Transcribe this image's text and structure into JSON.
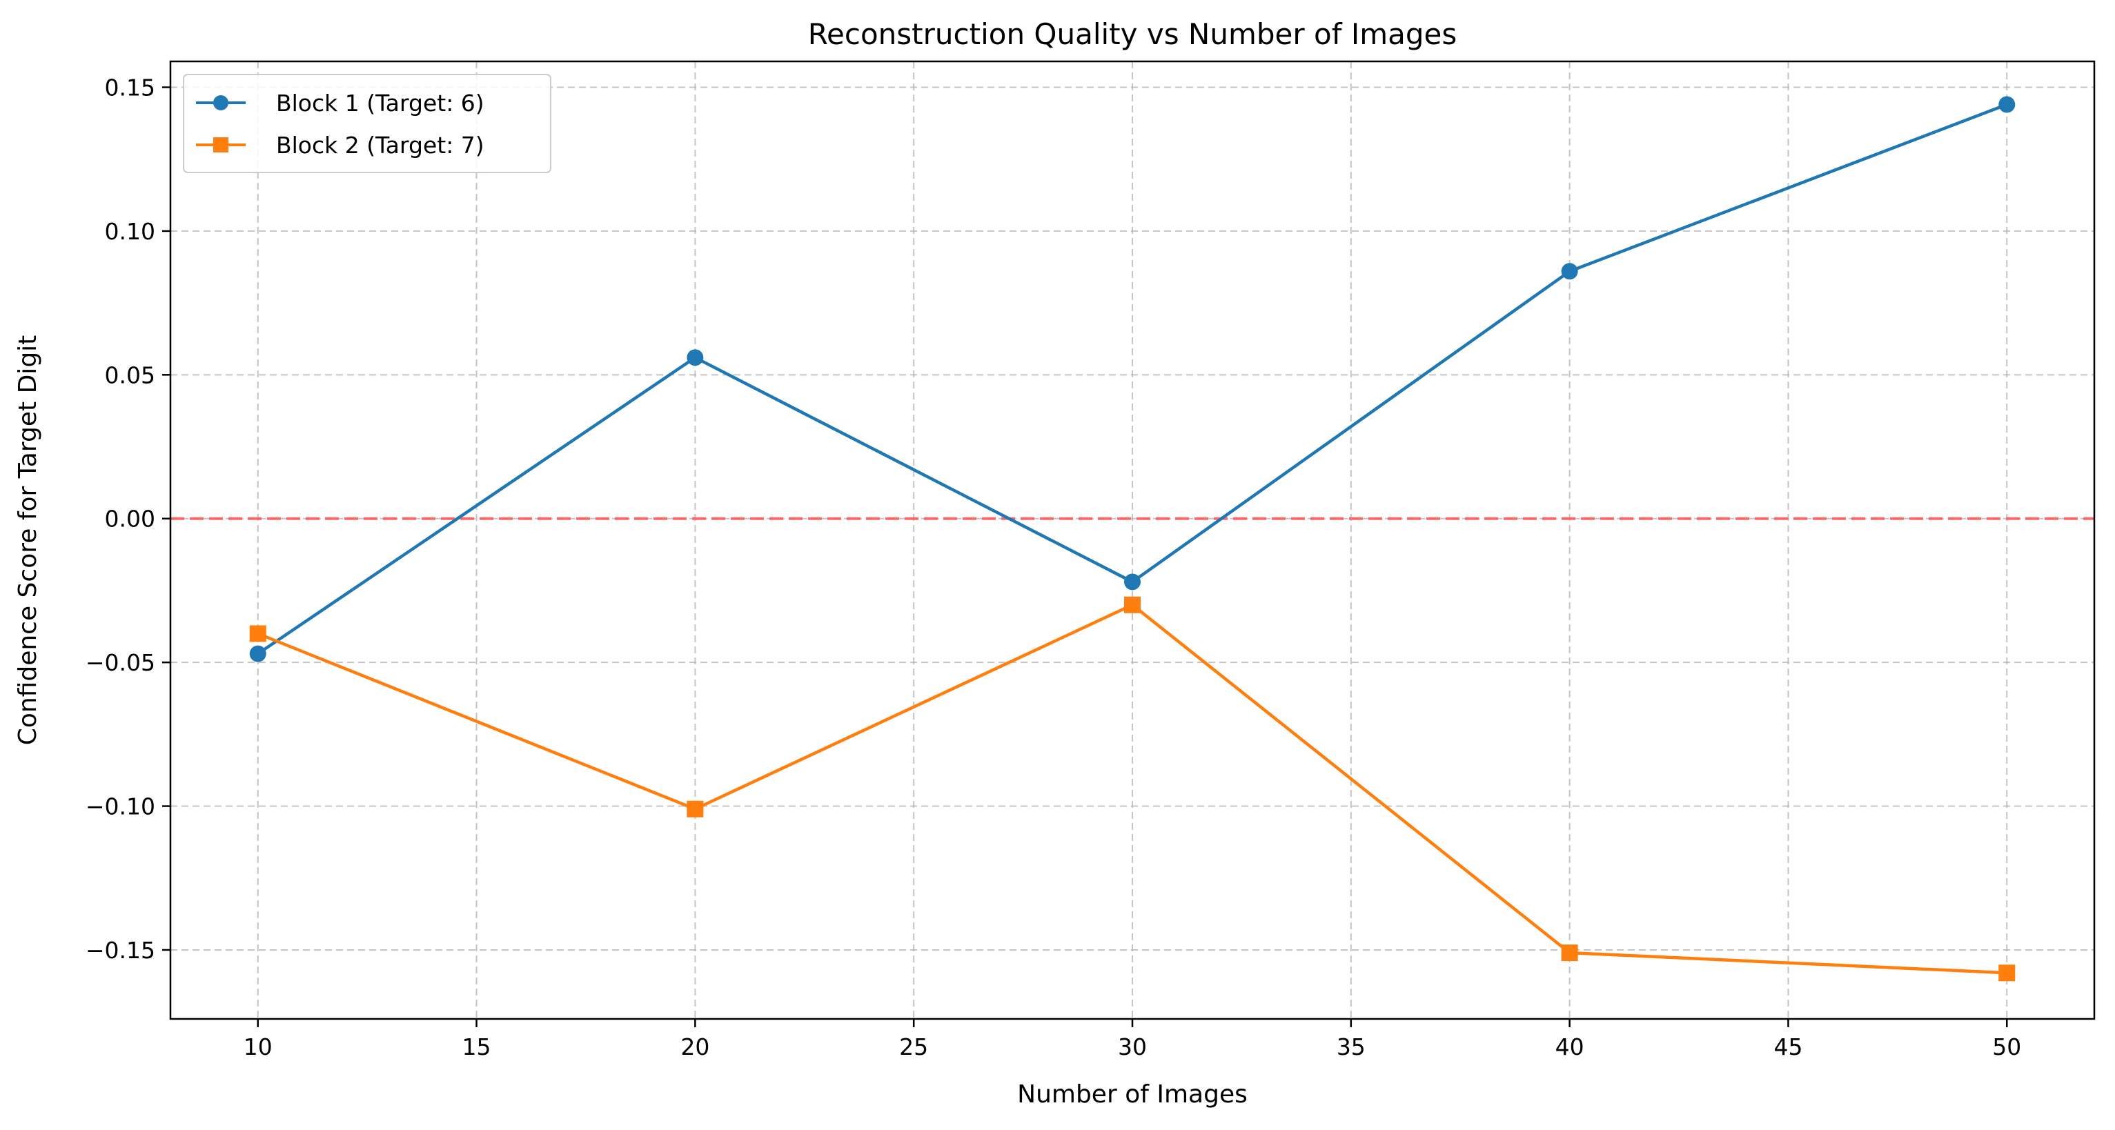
{
  "chart_data": {
    "type": "line",
    "title": "Reconstruction Quality vs Number of Images",
    "xlabel": "Number of Images",
    "ylabel": "Confidence Score for Target Digit",
    "xlim": [
      8,
      52
    ],
    "ylim": [
      -0.174,
      0.159
    ],
    "x_ticks": [
      10,
      15,
      20,
      25,
      30,
      35,
      40,
      45,
      50
    ],
    "x_tick_labels": [
      "10",
      "15",
      "20",
      "25",
      "30",
      "35",
      "40",
      "45",
      "50"
    ],
    "y_ticks": [
      -0.15,
      -0.1,
      -0.05,
      0.0,
      0.05,
      0.1,
      0.15
    ],
    "y_tick_labels": [
      "−0.15",
      "−0.10",
      "−0.05",
      "0.00",
      "0.05",
      "0.10",
      "0.15"
    ],
    "grid": true,
    "legend_position": "top-left",
    "x": [
      10,
      20,
      30,
      40,
      50
    ],
    "series": [
      {
        "name": "Block 1 (Target: 6)",
        "marker": "circle",
        "color": "#1f77b4",
        "values": [
          -0.047,
          0.056,
          -0.022,
          0.086,
          0.144
        ]
      },
      {
        "name": "Block 2 (Target: 7)",
        "marker": "square",
        "color": "#ff7f0e",
        "values": [
          -0.04,
          -0.101,
          -0.03,
          -0.151,
          -0.158
        ]
      }
    ],
    "reference_line": {
      "y": 0.0,
      "color": "#ff5a5a",
      "style": "dashed"
    }
  }
}
